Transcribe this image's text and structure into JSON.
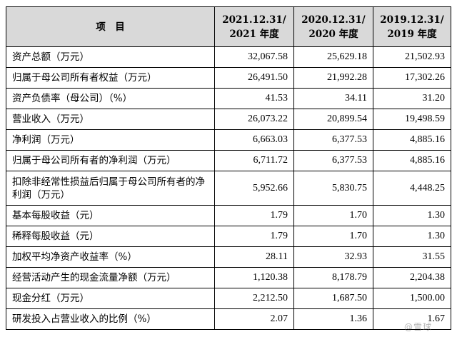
{
  "header": {
    "item_label": "项　目",
    "columns": [
      {
        "line1": "2021.12.31/",
        "line2": "2021 年度"
      },
      {
        "line1": "2020.12.31/",
        "line2": "2020 年度"
      },
      {
        "line1": "2019.12.31/",
        "line2": "2019 年度"
      }
    ]
  },
  "rows": [
    {
      "label": "资产总额（万元）",
      "values": [
        "32,067.58",
        "25,629.18",
        "21,502.93"
      ]
    },
    {
      "label": "归属于母公司所有者权益（万元）",
      "values": [
        "26,491.50",
        "21,992.28",
        "17,302.26"
      ]
    },
    {
      "label": "资产负债率（母公司）（%）",
      "values": [
        "41.53",
        "34.11",
        "31.20"
      ]
    },
    {
      "label": "营业收入（万元）",
      "values": [
        "26,073.22",
        "20,899.54",
        "19,498.59"
      ]
    },
    {
      "label": "净利润（万元）",
      "values": [
        "6,663.03",
        "6,377.53",
        "4,885.16"
      ]
    },
    {
      "label": "归属于母公司所有者的净利润（万元）",
      "values": [
        "6,711.72",
        "6,377.53",
        "4,885.16"
      ]
    },
    {
      "label": "扣除非经常性损益后归属于母公司所有者的净利润（万元）",
      "values": [
        "5,952.66",
        "5,830.75",
        "4,448.25"
      ]
    },
    {
      "label": "基本每股收益（元）",
      "values": [
        "1.79",
        "1.70",
        "1.30"
      ]
    },
    {
      "label": "稀释每股收益（元）",
      "values": [
        "1.79",
        "1.70",
        "1.30"
      ]
    },
    {
      "label": "加权平均净资产收益率（%）",
      "values": [
        "28.11",
        "32.93",
        "31.55"
      ]
    },
    {
      "label": "经营活动产生的现金流量净额（万元）",
      "values": [
        "1,120.38",
        "8,178.79",
        "2,204.38"
      ]
    },
    {
      "label": "现金分红（万元）",
      "values": [
        "2,212.50",
        "1,687.50",
        "1,500.00"
      ]
    },
    {
      "label": "研发投入占营业收入的比例（%）",
      "values": [
        "2.07",
        "1.36",
        "1.67"
      ]
    }
  ],
  "watermark": "@雪球",
  "colors": {
    "header_bg": "#d9d9d9",
    "border": "#000000"
  }
}
